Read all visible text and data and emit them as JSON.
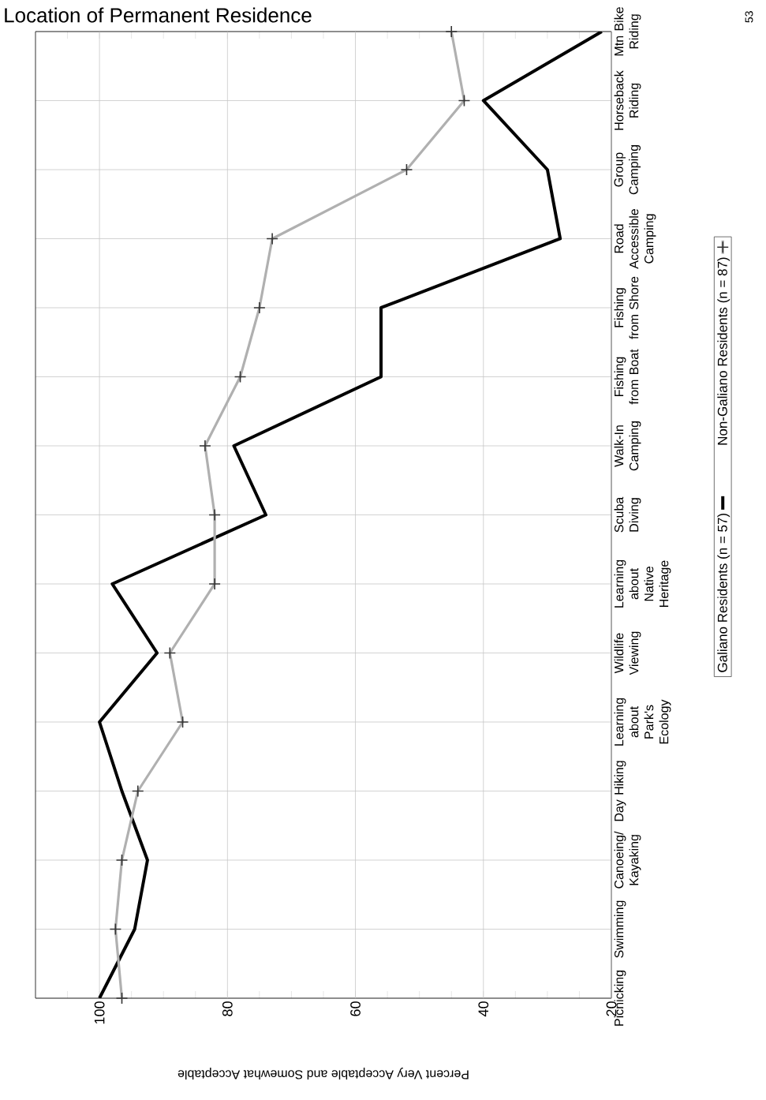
{
  "chart_data": {
    "type": "line",
    "orientation": "horizontal",
    "title": "Location of Permanent Residence",
    "xlabel": "Percent Very Acceptable and Somewhat Acceptable",
    "categories": [
      "Mtn Bike Riding",
      "Horseback Riding",
      "Group Camping",
      "Road Accessible Camping",
      "Fishing from Shore",
      "Fishing from Boat",
      "Walk-In Camping",
      "Scuba Diving",
      "Learning about Native Heritage",
      "Wildlife Viewing",
      "Learning about Park's Ecology",
      "Day Hiking",
      "Canoeing/ Kayaking",
      "Swimming",
      "Picnicking"
    ],
    "series": [
      {
        "name": "Galiano Residents (n = 57)",
        "color": "#000000",
        "marker": "none",
        "values": [
          21.5,
          40,
          30,
          28,
          56,
          56,
          79,
          74,
          98,
          91,
          100,
          96.5,
          92.5,
          94.5,
          100
        ]
      },
      {
        "name": "Non-Galiano Residents (n = 87)",
        "color": "#b0b0b0",
        "marker": "cross",
        "values": [
          45,
          43,
          52,
          73,
          75,
          78,
          83.5,
          82,
          82,
          89,
          87,
          94,
          96.5,
          97.5,
          96.5
        ]
      }
    ],
    "xlim": [
      110,
      20
    ],
    "xticks": [
      {
        "value": 105,
        "label": null
      },
      100,
      {
        "value": 95,
        "label": null
      },
      {
        "value": 90,
        "label": null
      },
      {
        "value": 85,
        "label": null
      },
      80,
      {
        "value": 75,
        "label": null
      },
      {
        "value": 70,
        "label": null
      },
      {
        "value": 65,
        "label": null
      },
      60,
      {
        "value": 55,
        "label": null
      },
      {
        "value": 50,
        "label": null
      },
      {
        "value": 45,
        "label": null
      },
      40,
      {
        "value": 35,
        "label": null
      },
      {
        "value": 30,
        "label": null
      },
      {
        "value": 25,
        "label": null
      },
      20
    ],
    "grid": true,
    "legend": "right",
    "line_style": "solid",
    "annotations": [
      "53"
    ]
  }
}
